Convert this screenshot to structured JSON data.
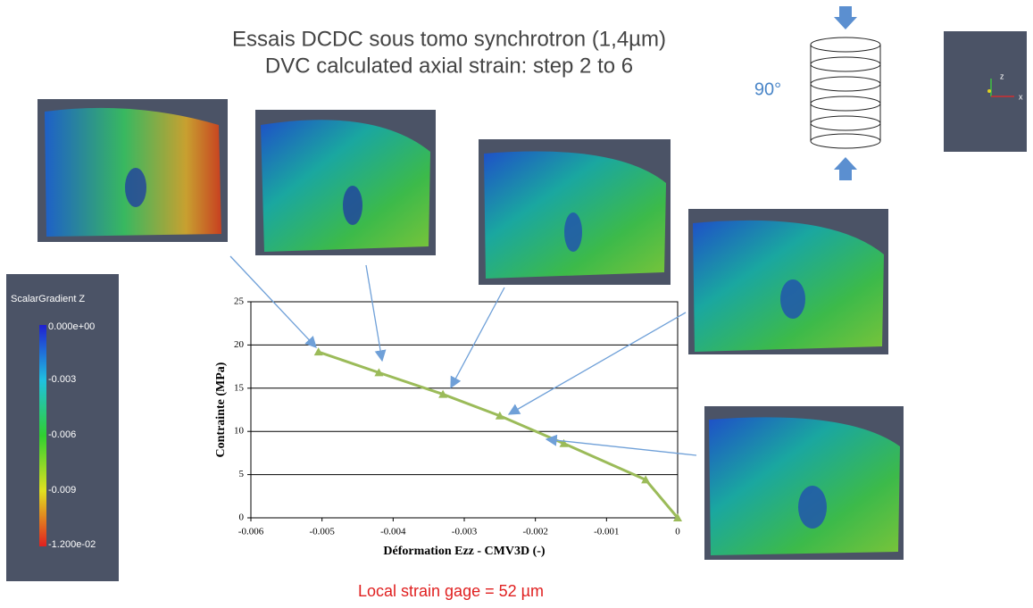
{
  "header": {
    "title_lines": [
      "Essais DCDC sous tomo synchrotron (1,4µm)",
      "DVC calculated axial strain: step 2 to 6"
    ]
  },
  "orientation": {
    "angle": "90°",
    "axes": [
      "z",
      "x"
    ]
  },
  "colorbar": {
    "title": "ScalarGradient Z",
    "labels": [
      "0.000e+00",
      "-0.003",
      "-0.006",
      "-0.009",
      "-1.200e-02"
    ]
  },
  "chart_data": {
    "type": "line",
    "xlabel": "Déformation Ezz - CMV3D (-)",
    "ylabel": "Contrainte (MPa)",
    "series": [
      {
        "color": "#9bbb59",
        "x": [
          -0.00505,
          -0.0042,
          -0.0033,
          -0.0025,
          -0.0016,
          -0.00045,
          0
        ],
        "values": [
          19.2,
          16.8,
          14.3,
          11.8,
          8.6,
          4.4,
          0
        ]
      }
    ],
    "xlim": [
      -0.006,
      0
    ],
    "xticks": [
      -0.006,
      -0.005,
      -0.004,
      -0.003,
      -0.002,
      -0.001,
      0
    ],
    "ylim": [
      0,
      25
    ],
    "yticks": [
      0,
      5,
      10,
      15,
      20,
      25
    ],
    "grid": true
  },
  "footer": "Local strain gage = 52 µm"
}
